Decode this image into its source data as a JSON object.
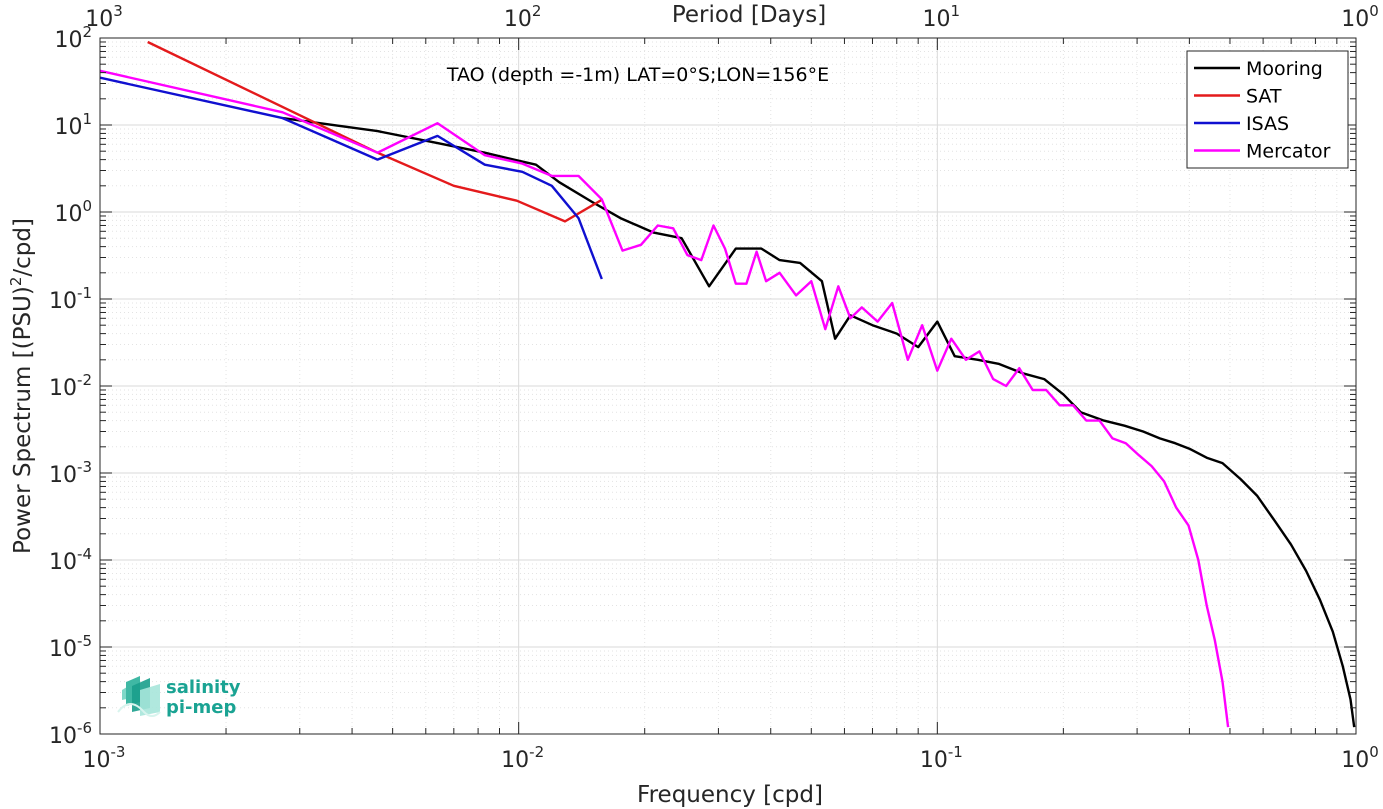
{
  "chart_data": {
    "type": "line",
    "title": "TAO (depth =-1m) LAT=0°S;LON=156°E",
    "xlabel": "Frequency [cpd]",
    "x2label": "Period [Days]",
    "ylabel": "Power Spectrum [(PSU)",
    "ylabel_exp": "2",
    "ylabel_tail": "/cpd]",
    "xscale": "log",
    "yscale": "log",
    "xlim": [
      0.001,
      1
    ],
    "ylim": [
      1e-06,
      100
    ],
    "grid": true,
    "legend_position": "top-right",
    "x_ticks": [
      {
        "base": "10",
        "exp": "-3"
      },
      {
        "base": "10",
        "exp": "-2"
      },
      {
        "base": "10",
        "exp": "-1"
      },
      {
        "base": "10",
        "exp": "0"
      }
    ],
    "x2_ticks": [
      {
        "base": "10",
        "exp": "3"
      },
      {
        "base": "10",
        "exp": "2"
      },
      {
        "base": "10",
        "exp": "1"
      },
      {
        "base": "10",
        "exp": "0"
      }
    ],
    "y_ticks": [
      {
        "base": "10",
        "exp": "2"
      },
      {
        "base": "10",
        "exp": "1"
      },
      {
        "base": "10",
        "exp": "0"
      },
      {
        "base": "10",
        "exp": "-1"
      },
      {
        "base": "10",
        "exp": "-2"
      },
      {
        "base": "10",
        "exp": "-3"
      },
      {
        "base": "10",
        "exp": "-4"
      },
      {
        "base": "10",
        "exp": "-5"
      },
      {
        "base": "10",
        "exp": "-6"
      }
    ],
    "series": [
      {
        "name": "Mooring",
        "color": "#000000",
        "x": [
          0.00273,
          0.0046,
          0.0064,
          0.0083,
          0.0102,
          0.011,
          0.0125,
          0.015,
          0.0175,
          0.021,
          0.0245,
          0.0285,
          0.033,
          0.038,
          0.042,
          0.047,
          0.053,
          0.057,
          0.062,
          0.07,
          0.08,
          0.09,
          0.1,
          0.11,
          0.125,
          0.14,
          0.16,
          0.18,
          0.2,
          0.22,
          0.25,
          0.28,
          0.31,
          0.34,
          0.37,
          0.4,
          0.44,
          0.48,
          0.53,
          0.58,
          0.64,
          0.7,
          0.76,
          0.82,
          0.88,
          0.93,
          0.97,
          0.99
        ],
        "y": [
          12,
          8.5,
          6.2,
          4.8,
          3.8,
          3.5,
          2.2,
          1.3,
          0.85,
          0.58,
          0.5,
          0.14,
          0.38,
          0.38,
          0.28,
          0.26,
          0.16,
          0.035,
          0.065,
          0.05,
          0.04,
          0.028,
          0.055,
          0.022,
          0.02,
          0.018,
          0.014,
          0.012,
          0.008,
          0.005,
          0.004,
          0.0035,
          0.003,
          0.0025,
          0.0022,
          0.0019,
          0.0015,
          0.0013,
          0.00085,
          0.00055,
          0.00028,
          0.00015,
          7.5e-05,
          3.5e-05,
          1.5e-05,
          6e-06,
          2.5e-06,
          1.2e-06
        ]
      },
      {
        "name": "SAT",
        "color": "#e41a1c",
        "x": [
          0.0013,
          0.0046,
          0.007,
          0.0099,
          0.0129,
          0.0158
        ],
        "y": [
          90,
          4.8,
          2.0,
          1.35,
          0.78,
          1.38
        ]
      },
      {
        "name": "ISAS",
        "color": "#1010d0",
        "x": [
          0.001,
          0.00273,
          0.0046,
          0.0064,
          0.0083,
          0.0102,
          0.012,
          0.0139,
          0.0158
        ],
        "y": [
          35,
          12,
          4.0,
          7.5,
          3.5,
          2.9,
          2.0,
          0.85,
          0.17
        ]
      },
      {
        "name": "Mercator",
        "color": "#ff00ff",
        "x": [
          0.001,
          0.00273,
          0.0046,
          0.0064,
          0.0083,
          0.0102,
          0.012,
          0.0139,
          0.0158,
          0.0177,
          0.0196,
          0.0215,
          0.0234,
          0.0253,
          0.0273,
          0.0292,
          0.0311,
          0.033,
          0.035,
          0.037,
          0.039,
          0.042,
          0.046,
          0.05,
          0.054,
          0.058,
          0.062,
          0.066,
          0.072,
          0.078,
          0.085,
          0.092,
          0.1,
          0.108,
          0.117,
          0.126,
          0.136,
          0.146,
          0.157,
          0.169,
          0.182,
          0.196,
          0.211,
          0.227,
          0.244,
          0.262,
          0.282,
          0.303,
          0.325,
          0.348,
          0.372,
          0.398,
          0.42,
          0.44,
          0.46,
          0.48,
          0.495
        ],
        "y": [
          42,
          14,
          4.8,
          10.5,
          4.5,
          3.6,
          2.6,
          2.6,
          1.4,
          0.36,
          0.42,
          0.7,
          0.65,
          0.32,
          0.28,
          0.7,
          0.38,
          0.15,
          0.15,
          0.35,
          0.16,
          0.2,
          0.11,
          0.16,
          0.045,
          0.14,
          0.06,
          0.08,
          0.055,
          0.09,
          0.02,
          0.05,
          0.015,
          0.035,
          0.02,
          0.025,
          0.012,
          0.01,
          0.016,
          0.009,
          0.009,
          0.006,
          0.006,
          0.004,
          0.004,
          0.0025,
          0.0022,
          0.0016,
          0.0012,
          0.0008,
          0.0004,
          0.00025,
          0.0001,
          3e-05,
          1.2e-05,
          4e-06,
          1.2e-06
        ]
      }
    ]
  },
  "logo": {
    "line1": "salinity",
    "line2": "pi-mep"
  }
}
